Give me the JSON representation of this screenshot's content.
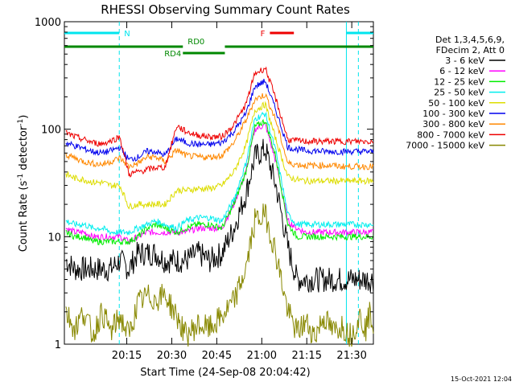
{
  "chart_data": {
    "type": "line",
    "title": "RHESSI Observing Summary Count Rates",
    "xlabel": "Start Time (24-Sep-08 20:04:42)",
    "ylabel_main": "Count Rate (s",
    "ylabel_sup1": "-1",
    "ylabel_mid": " detector",
    "ylabel_sup2": "-1",
    "ylabel_end": ")",
    "yscale": "log",
    "ylim": [
      1,
      1000
    ],
    "xlim_minutes": [
      -10.5,
      92.5
    ],
    "x_time_origin": "20:04:42",
    "xticks": [
      {
        "t": 10.3,
        "label": "20:15"
      },
      {
        "t": 25.3,
        "label": "20:30"
      },
      {
        "t": 40.3,
        "label": "20:45"
      },
      {
        "t": 55.3,
        "label": "21:00"
      },
      {
        "t": 70.3,
        "label": "21:15"
      },
      {
        "t": 85.3,
        "label": "21:30"
      }
    ],
    "yticks": [
      {
        "v": 1,
        "label": "1"
      },
      {
        "v": 10,
        "label": "10"
      },
      {
        "v": 100,
        "label": "100"
      },
      {
        "v": 1000,
        "label": "1000"
      }
    ],
    "legend_header": [
      "Det 1,3,4,5,6,9,",
      "FDecim 2, Att 0"
    ],
    "flags": [
      {
        "label": "N",
        "color": "#00e5ee",
        "row": "top",
        "segments": [
          [
            -10.5,
            7.8
          ],
          [
            83.5,
            92.5
          ]
        ]
      },
      {
        "label": "F",
        "color": "#ee0000",
        "row": "top",
        "segments": [
          [
            58.0,
            66.0
          ]
        ]
      },
      {
        "label": "RD0",
        "color": "#008800",
        "row": "middle",
        "segments": [
          [
            -10.5,
            29.0
          ],
          [
            43.0,
            92.5
          ]
        ]
      },
      {
        "label": "RD4",
        "color": "#008800",
        "row": "bottom",
        "segments": [
          [
            29.0,
            43.0
          ]
        ]
      }
    ],
    "vlines": [
      {
        "t": 7.8,
        "style": "dashed",
        "color": "#00e5ee"
      },
      {
        "t": 83.5,
        "style": "solid",
        "color": "#00e5ee"
      },
      {
        "t": 87.5,
        "style": "dashed",
        "color": "#00e5ee"
      }
    ],
    "peak_time": 56.5,
    "series": [
      {
        "name": "3 - 6 keV",
        "color": "#000000",
        "values": [
          6,
          5,
          5,
          5,
          5,
          5,
          6,
          5,
          7,
          7,
          7,
          6,
          6,
          6,
          7,
          6,
          7,
          12,
          25,
          55,
          65,
          30,
          8,
          4,
          4,
          4,
          4,
          4,
          4,
          4,
          4,
          4,
          4,
          4
        ]
      },
      {
        "name": "6 - 12 keV",
        "color": "#ff00ff",
        "values": [
          12,
          11,
          11,
          10,
          10,
          10,
          10,
          9,
          10,
          11,
          11,
          11,
          11,
          11,
          12,
          12,
          12,
          20,
          40,
          100,
          110,
          50,
          14,
          12,
          11,
          11,
          11,
          11,
          11,
          11,
          11,
          11,
          11,
          11
        ]
      },
      {
        "name": "12 - 25 keV",
        "color": "#00ee00",
        "values": [
          11,
          10,
          10,
          9,
          9,
          9,
          9,
          9,
          10,
          12,
          13,
          12,
          11,
          12,
          13,
          13,
          12,
          20,
          40,
          105,
          120,
          55,
          13,
          10,
          10,
          10,
          10,
          10,
          10,
          10,
          10,
          10,
          10,
          10
        ]
      },
      {
        "name": "25 - 50 keV",
        "color": "#00eeee",
        "values": [
          14,
          13,
          13,
          12,
          12,
          11,
          11,
          11,
          12,
          13,
          14,
          13,
          12,
          14,
          15,
          15,
          14,
          22,
          48,
          125,
          140,
          62,
          16,
          13,
          13,
          13,
          13,
          13,
          13,
          13,
          13,
          13,
          13,
          13
        ]
      },
      {
        "name": "50 - 100 keV",
        "color": "#dddd00",
        "values": [
          38,
          35,
          34,
          32,
          32,
          30,
          30,
          19,
          20,
          20,
          20,
          20,
          27,
          27,
          28,
          28,
          30,
          40,
          70,
          150,
          170,
          80,
          36,
          34,
          33,
          33,
          33,
          33,
          33,
          33,
          33,
          33,
          33,
          33
        ]
      },
      {
        "name": "100 - 300 keV",
        "color": "#0000ee",
        "values": [
          75,
          70,
          66,
          62,
          60,
          63,
          68,
          52,
          55,
          62,
          62,
          57,
          82,
          75,
          72,
          72,
          75,
          95,
          140,
          250,
          280,
          150,
          68,
          65,
          63,
          63,
          62,
          62,
          62,
          62,
          62,
          62,
          62,
          61
        ]
      },
      {
        "name": "300 - 800 keV",
        "color": "#ff8800",
        "values": [
          58,
          54,
          50,
          48,
          47,
          50,
          54,
          45,
          48,
          55,
          55,
          50,
          64,
          57,
          55,
          55,
          57,
          75,
          120,
          190,
          210,
          120,
          48,
          47,
          46,
          46,
          46,
          46,
          45,
          45,
          45,
          45,
          45,
          45
        ]
      },
      {
        "name": "800 - 7000 keV",
        "color": "#ee0000",
        "values": [
          92,
          85,
          80,
          75,
          73,
          78,
          85,
          38,
          40,
          42,
          44,
          44,
          108,
          95,
          88,
          85,
          85,
          110,
          170,
          330,
          370,
          190,
          80,
          78,
          77,
          77,
          77,
          77,
          77,
          77,
          77,
          77,
          77,
          78
        ]
      },
      {
        "name": "7000 - 15000 keV",
        "color": "#888800",
        "values": [
          2,
          1.4,
          2,
          1.2,
          2,
          1.3,
          1.8,
          1.2,
          2.4,
          2.8,
          2.6,
          2.9,
          1.8,
          1.2,
          1.5,
          1.4,
          1.8,
          2.5,
          5,
          14,
          16,
          7,
          2,
          1.3,
          1.6,
          1.2,
          1.8,
          1.3,
          1.5,
          1.2,
          1.8,
          1.4,
          2,
          1.5
        ]
      }
    ],
    "x": [
      -10,
      -7,
      -4,
      -1,
      2,
      5,
      8,
      11,
      14,
      17,
      20,
      23,
      27,
      30,
      34,
      38,
      42,
      46,
      50,
      53,
      56.5,
      60,
      64,
      67,
      70,
      73,
      76,
      79,
      82,
      85,
      88,
      90,
      91.5,
      92.5
    ]
  },
  "footer_date": "15-Oct-2021 12:04"
}
